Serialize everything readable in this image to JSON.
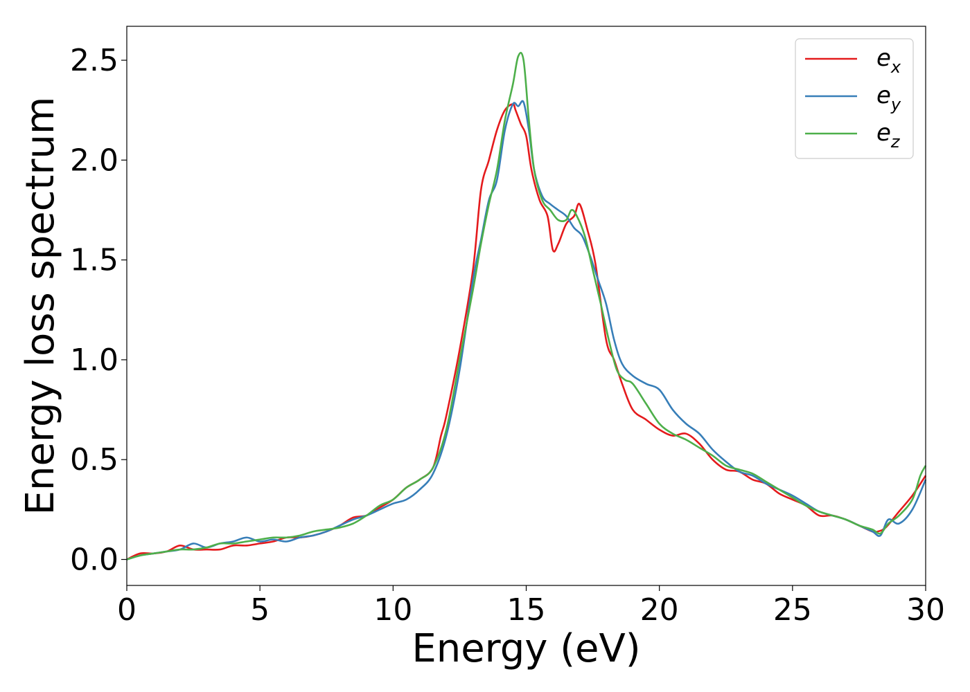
{
  "chart_data": {
    "type": "line",
    "xlabel": "Energy (eV)",
    "ylabel": "Energy loss spectrum",
    "xlim": [
      0,
      30
    ],
    "ylim": [
      -0.13,
      2.67
    ],
    "xticks": [
      0,
      5,
      10,
      15,
      20,
      25,
      30
    ],
    "yticks": [
      0.0,
      0.5,
      1.0,
      1.5,
      2.0,
      2.5
    ],
    "xtick_labels": [
      "0",
      "5",
      "10",
      "15",
      "20",
      "25",
      "30"
    ],
    "ytick_labels": [
      "0.0",
      "0.5",
      "1.0",
      "1.5",
      "2.0",
      "2.5"
    ],
    "grid": false,
    "legend_position": "top-right",
    "series": [
      {
        "name": "e_x",
        "label_main": "e",
        "label_sub": "x",
        "color": "#e41a1c",
        "x": [
          0,
          0.5,
          1,
          1.5,
          2,
          2.5,
          3,
          3.5,
          4,
          4.5,
          5,
          5.5,
          6,
          6.5,
          7,
          7.5,
          8,
          8.5,
          9,
          9.5,
          10,
          10.5,
          11,
          11.5,
          11.8,
          12,
          12.5,
          13,
          13.3,
          13.6,
          13.9,
          14.2,
          14.5,
          14.6,
          14.8,
          15,
          15.2,
          15.5,
          15.8,
          16.0,
          16.2,
          16.5,
          16.8,
          17.0,
          17.3,
          17.6,
          18,
          18.3,
          18.6,
          19,
          19.5,
          20,
          20.5,
          21,
          21.5,
          22,
          22.5,
          23,
          23.5,
          24,
          24.5,
          25,
          25.5,
          26,
          26.5,
          27,
          27.5,
          28,
          28.2,
          28.5,
          29,
          29.5,
          30
        ],
        "y": [
          0.0,
          0.03,
          0.03,
          0.04,
          0.07,
          0.05,
          0.05,
          0.05,
          0.07,
          0.07,
          0.08,
          0.09,
          0.11,
          0.11,
          0.12,
          0.14,
          0.17,
          0.21,
          0.22,
          0.26,
          0.3,
          0.36,
          0.4,
          0.46,
          0.62,
          0.72,
          1.05,
          1.45,
          1.85,
          2.0,
          2.15,
          2.25,
          2.28,
          2.25,
          2.18,
          2.12,
          1.95,
          1.8,
          1.72,
          1.55,
          1.58,
          1.68,
          1.72,
          1.78,
          1.65,
          1.48,
          1.1,
          1.0,
          0.88,
          0.75,
          0.7,
          0.65,
          0.62,
          0.63,
          0.58,
          0.5,
          0.45,
          0.44,
          0.4,
          0.38,
          0.33,
          0.3,
          0.27,
          0.22,
          0.22,
          0.2,
          0.17,
          0.14,
          0.14,
          0.16,
          0.24,
          0.32,
          0.42
        ]
      },
      {
        "name": "e_y",
        "label_main": "e",
        "label_sub": "y",
        "color": "#377eb8",
        "x": [
          0,
          0.5,
          1,
          1.5,
          2,
          2.5,
          3,
          3.5,
          4,
          4.5,
          5,
          5.5,
          6,
          6.5,
          7,
          7.5,
          8,
          8.5,
          9,
          9.5,
          10,
          10.5,
          11,
          11.5,
          12,
          12.5,
          13,
          13.3,
          13.6,
          13.9,
          14.2,
          14.5,
          14.7,
          14.9,
          15.1,
          15.3,
          15.6,
          15.9,
          16.2,
          16.5,
          16.8,
          17.1,
          17.4,
          17.7,
          18,
          18.3,
          18.6,
          19,
          19.5,
          20,
          20.5,
          21,
          21.5,
          22,
          22.5,
          23,
          23.5,
          24,
          24.5,
          25,
          25.5,
          26,
          26.5,
          27,
          27.5,
          28,
          28.3,
          28.6,
          29,
          29.5,
          30
        ],
        "y": [
          0.0,
          0.02,
          0.03,
          0.04,
          0.05,
          0.08,
          0.06,
          0.08,
          0.09,
          0.11,
          0.09,
          0.1,
          0.09,
          0.11,
          0.12,
          0.14,
          0.17,
          0.2,
          0.22,
          0.25,
          0.28,
          0.3,
          0.35,
          0.43,
          0.62,
          0.95,
          1.4,
          1.6,
          1.8,
          1.9,
          2.15,
          2.28,
          2.27,
          2.29,
          2.15,
          1.95,
          1.82,
          1.78,
          1.75,
          1.72,
          1.66,
          1.62,
          1.52,
          1.4,
          1.28,
          1.1,
          0.98,
          0.92,
          0.88,
          0.85,
          0.75,
          0.68,
          0.63,
          0.55,
          0.49,
          0.44,
          0.42,
          0.38,
          0.35,
          0.32,
          0.28,
          0.24,
          0.22,
          0.2,
          0.17,
          0.14,
          0.12,
          0.2,
          0.18,
          0.25,
          0.4
        ]
      },
      {
        "name": "e_z",
        "label_main": "e",
        "label_sub": "z",
        "color": "#4daf4a",
        "x": [
          0,
          0.5,
          1,
          1.5,
          2,
          2.5,
          3,
          3.5,
          4,
          4.5,
          5,
          5.5,
          6,
          6.5,
          7,
          7.5,
          8,
          8.5,
          9,
          9.5,
          10,
          10.5,
          11,
          11.5,
          12,
          12.5,
          13,
          13.3,
          13.6,
          13.9,
          14.2,
          14.5,
          14.7,
          14.9,
          15.1,
          15.3,
          15.6,
          15.9,
          16.2,
          16.5,
          16.7,
          16.9,
          17.2,
          17.5,
          17.8,
          18.1,
          18.4,
          18.7,
          19,
          19.5,
          20,
          20.5,
          21,
          21.5,
          22,
          22.5,
          23,
          23.5,
          24,
          24.5,
          25,
          25.5,
          26,
          26.5,
          27,
          27.5,
          28,
          28.3,
          28.6,
          29,
          29.5,
          29.8,
          30
        ],
        "y": [
          0.0,
          0.02,
          0.03,
          0.04,
          0.05,
          0.05,
          0.06,
          0.08,
          0.08,
          0.09,
          0.1,
          0.11,
          0.11,
          0.12,
          0.14,
          0.15,
          0.16,
          0.18,
          0.22,
          0.27,
          0.3,
          0.36,
          0.4,
          0.46,
          0.65,
          1.0,
          1.35,
          1.58,
          1.78,
          1.95,
          2.2,
          2.38,
          2.52,
          2.5,
          2.2,
          1.95,
          1.8,
          1.75,
          1.7,
          1.7,
          1.75,
          1.72,
          1.62,
          1.45,
          1.28,
          1.1,
          0.95,
          0.9,
          0.88,
          0.78,
          0.68,
          0.63,
          0.6,
          0.56,
          0.52,
          0.47,
          0.45,
          0.43,
          0.39,
          0.35,
          0.31,
          0.27,
          0.24,
          0.22,
          0.2,
          0.17,
          0.15,
          0.13,
          0.18,
          0.22,
          0.3,
          0.42,
          0.47
        ]
      }
    ]
  }
}
